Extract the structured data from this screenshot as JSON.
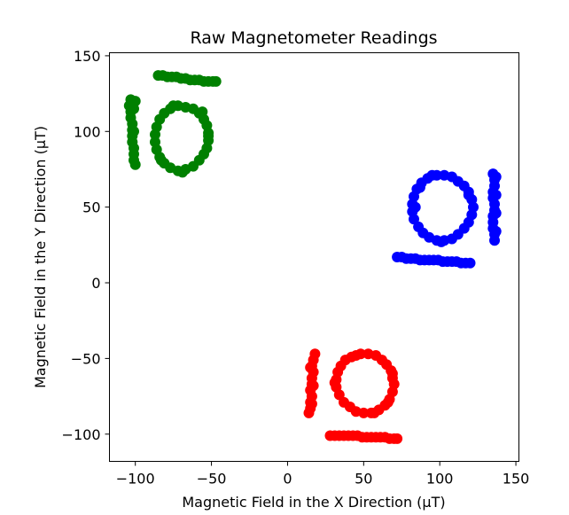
{
  "chart_data": {
    "type": "scatter",
    "title": "Raw Magnetometer Readings",
    "xlabel": "Magnetic Field in the X Direction (µT)",
    "ylabel": "Magnetic Field in the Y Direction (µT)",
    "xlim": [
      -117,
      152
    ],
    "ylim": [
      -118,
      152
    ],
    "xticks": [
      -100,
      -50,
      0,
      50,
      100,
      150
    ],
    "yticks": [
      -100,
      -50,
      0,
      50,
      100,
      150
    ],
    "xtick_labels": [
      "−100",
      "−50",
      "0",
      "50",
      "100",
      "150"
    ],
    "ytick_labels": [
      "−100",
      "−50",
      "0",
      "50",
      "100",
      "150"
    ],
    "grid": false,
    "legend": "none",
    "series": [
      {
        "color": "#008000",
        "points": [
          [
            -85,
            137
          ],
          [
            -82,
            137
          ],
          [
            -79,
            136
          ],
          [
            -76,
            136
          ],
          [
            -73,
            136
          ],
          [
            -70,
            135
          ],
          [
            -67,
            135
          ],
          [
            -64,
            134
          ],
          [
            -61,
            134
          ],
          [
            -58,
            134
          ],
          [
            -55,
            133
          ],
          [
            -52,
            133
          ],
          [
            -49,
            133
          ],
          [
            -47,
            133
          ],
          [
            -103,
            121
          ],
          [
            -104,
            117
          ],
          [
            -103,
            113
          ],
          [
            -103,
            109
          ],
          [
            -102,
            105
          ],
          [
            -102,
            101
          ],
          [
            -102,
            97
          ],
          [
            -102,
            93
          ],
          [
            -101,
            89
          ],
          [
            -101,
            85
          ],
          [
            -101,
            81
          ],
          [
            -100,
            78
          ],
          [
            -100,
            120
          ],
          [
            -101,
            115
          ],
          [
            -101,
            100
          ],
          [
            -72,
            117
          ],
          [
            -67,
            116
          ],
          [
            -62,
            115
          ],
          [
            -58,
            112
          ],
          [
            -55,
            108
          ],
          [
            -53,
            104
          ],
          [
            -52,
            99
          ],
          [
            -52,
            94
          ],
          [
            -53,
            89
          ],
          [
            -55,
            85
          ],
          [
            -58,
            81
          ],
          [
            -62,
            77
          ],
          [
            -67,
            75
          ],
          [
            -72,
            74
          ],
          [
            -77,
            76
          ],
          [
            -81,
            79
          ],
          [
            -84,
            83
          ],
          [
            -86,
            88
          ],
          [
            -87,
            93
          ],
          [
            -87,
            98
          ],
          [
            -86,
            103
          ],
          [
            -84,
            108
          ],
          [
            -81,
            112
          ],
          [
            -77,
            115
          ],
          [
            -75,
            117
          ],
          [
            -56,
            113
          ],
          [
            -52,
            97
          ],
          [
            -69,
            73
          ],
          [
            -83,
            81
          ]
        ]
      },
      {
        "color": "#0000ff",
        "points": [
          [
            72,
            17
          ],
          [
            75,
            17
          ],
          [
            78,
            16
          ],
          [
            81,
            16
          ],
          [
            84,
            16
          ],
          [
            87,
            15
          ],
          [
            90,
            15
          ],
          [
            93,
            15
          ],
          [
            96,
            15
          ],
          [
            99,
            15
          ],
          [
            102,
            14
          ],
          [
            105,
            14
          ],
          [
            108,
            14
          ],
          [
            111,
            14
          ],
          [
            114,
            13
          ],
          [
            117,
            13
          ],
          [
            120,
            13
          ],
          [
            135,
            72
          ],
          [
            136,
            68
          ],
          [
            136,
            64
          ],
          [
            135,
            60
          ],
          [
            135,
            56
          ],
          [
            136,
            52
          ],
          [
            136,
            48
          ],
          [
            135,
            44
          ],
          [
            135,
            40
          ],
          [
            135,
            36
          ],
          [
            136,
            32
          ],
          [
            136,
            28
          ],
          [
            137,
            70
          ],
          [
            137,
            58
          ],
          [
            137,
            46
          ],
          [
            137,
            34
          ],
          [
            98,
            71
          ],
          [
            103,
            71
          ],
          [
            108,
            70
          ],
          [
            112,
            67
          ],
          [
            116,
            64
          ],
          [
            119,
            60
          ],
          [
            121,
            55
          ],
          [
            122,
            50
          ],
          [
            121,
            45
          ],
          [
            119,
            40
          ],
          [
            116,
            36
          ],
          [
            112,
            32
          ],
          [
            108,
            29
          ],
          [
            103,
            28
          ],
          [
            98,
            28
          ],
          [
            93,
            30
          ],
          [
            89,
            33
          ],
          [
            86,
            37
          ],
          [
            83,
            42
          ],
          [
            82,
            47
          ],
          [
            82,
            52
          ],
          [
            83,
            57
          ],
          [
            85,
            62
          ],
          [
            88,
            66
          ],
          [
            92,
            69
          ],
          [
            95,
            71
          ],
          [
            87,
            63
          ],
          [
            84,
            50
          ],
          [
            101,
            27
          ],
          [
            119,
            58
          ]
        ]
      },
      {
        "color": "#ff0000",
        "points": [
          [
            28,
            -101
          ],
          [
            31,
            -101
          ],
          [
            34,
            -101
          ],
          [
            37,
            -101
          ],
          [
            40,
            -101
          ],
          [
            43,
            -101
          ],
          [
            46,
            -101
          ],
          [
            49,
            -102
          ],
          [
            52,
            -102
          ],
          [
            55,
            -102
          ],
          [
            58,
            -102
          ],
          [
            61,
            -102
          ],
          [
            64,
            -102
          ],
          [
            67,
            -103
          ],
          [
            70,
            -103
          ],
          [
            72,
            -103
          ],
          [
            18,
            -47
          ],
          [
            17,
            -51
          ],
          [
            16,
            -55
          ],
          [
            17,
            -59
          ],
          [
            16,
            -63
          ],
          [
            16,
            -67
          ],
          [
            15,
            -71
          ],
          [
            16,
            -75
          ],
          [
            15,
            -79
          ],
          [
            15,
            -83
          ],
          [
            14,
            -86
          ],
          [
            15,
            -56
          ],
          [
            17,
            -68
          ],
          [
            16,
            -80
          ],
          [
            48,
            -47
          ],
          [
            53,
            -47
          ],
          [
            58,
            -48
          ],
          [
            62,
            -51
          ],
          [
            65,
            -54
          ],
          [
            68,
            -58
          ],
          [
            69,
            -63
          ],
          [
            70,
            -67
          ],
          [
            69,
            -72
          ],
          [
            67,
            -77
          ],
          [
            64,
            -81
          ],
          [
            60,
            -84
          ],
          [
            55,
            -86
          ],
          [
            50,
            -86
          ],
          [
            45,
            -85
          ],
          [
            41,
            -82
          ],
          [
            37,
            -79
          ],
          [
            34,
            -74
          ],
          [
            32,
            -69
          ],
          [
            32,
            -64
          ],
          [
            33,
            -59
          ],
          [
            35,
            -55
          ],
          [
            38,
            -51
          ],
          [
            42,
            -49
          ],
          [
            45,
            -48
          ],
          [
            66,
            -79
          ],
          [
            31,
            -66
          ],
          [
            57,
            -86
          ],
          [
            69,
            -60
          ]
        ]
      }
    ]
  }
}
